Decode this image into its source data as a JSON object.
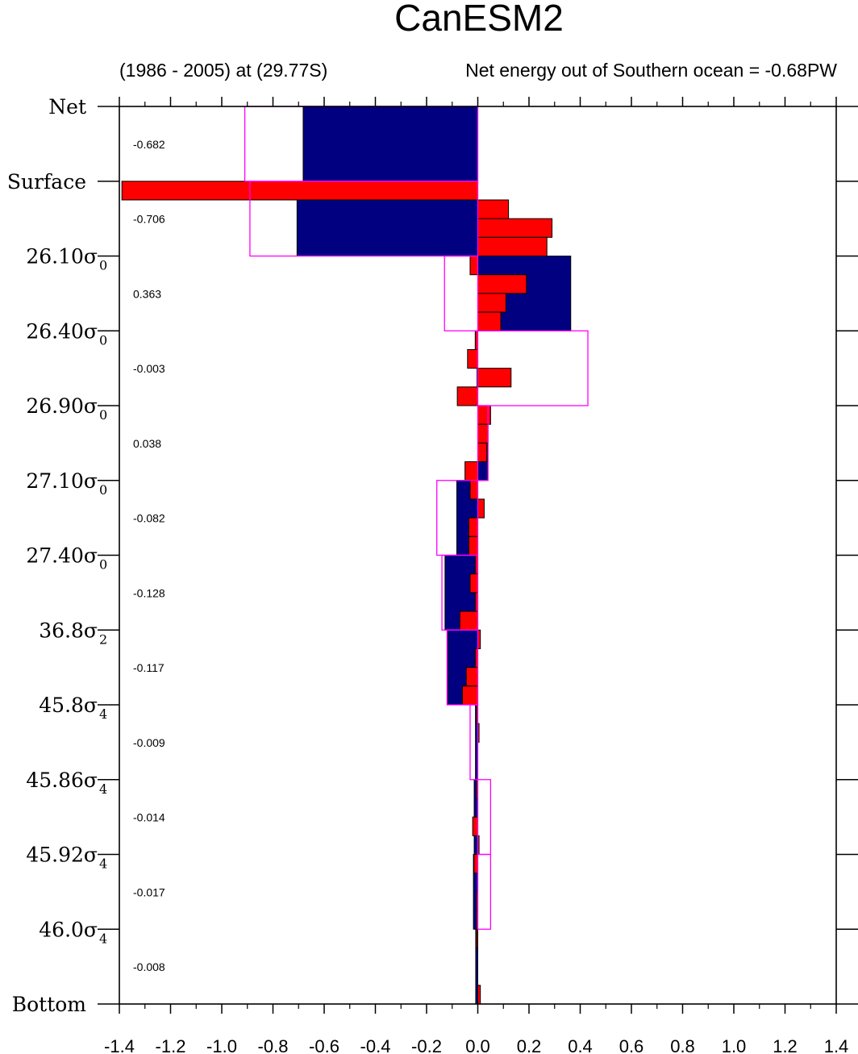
{
  "chart_data": {
    "type": "bar",
    "orientation": "horizontal",
    "title": "CanESM2",
    "subtitle_left": "(1986 - 2005) at (29.77S)",
    "subtitle_right": "Net energy out of Southern ocean = -0.68PW",
    "xlim": [
      -1.4,
      1.4
    ],
    "x_ticks": [
      "-1.4",
      "-1.2",
      "-1.0",
      "-0.8",
      "-0.6",
      "-0.4",
      "-0.2",
      "0.0",
      "0.2",
      "0.4",
      "0.6",
      "0.8",
      "1.0",
      "1.2",
      "1.4"
    ],
    "layer_labels": [
      {
        "main": "Net",
        "sub": ""
      },
      {
        "main": "Surface",
        "sub": ""
      },
      {
        "main": "26.10σ",
        "sub": "0"
      },
      {
        "main": "26.40σ",
        "sub": "0"
      },
      {
        "main": "26.90σ",
        "sub": "0"
      },
      {
        "main": "27.10σ",
        "sub": "0"
      },
      {
        "main": "27.40σ",
        "sub": "0"
      },
      {
        "main": "36.8σ",
        "sub": "2"
      },
      {
        "main": "45.8σ",
        "sub": "4"
      },
      {
        "main": "45.86σ",
        "sub": "4"
      },
      {
        "main": "45.92σ",
        "sub": "4"
      },
      {
        "main": "46.0σ",
        "sub": "4"
      },
      {
        "main": "Bottom",
        "sub": ""
      }
    ],
    "layer_annotations": [
      "-0.682",
      "-0.706",
      "0.363",
      "-0.003",
      "0.038",
      "-0.082",
      "-0.128",
      "-0.117",
      "-0.009",
      "-0.014",
      "-0.017",
      "-0.008"
    ],
    "layer_values": [
      -0.682,
      -0.706,
      0.363,
      -0.003,
      0.038,
      -0.082,
      -0.128,
      -0.117,
      -0.009,
      -0.014,
      -0.017,
      -0.008
    ],
    "outline_values": [
      -0.91,
      -0.89,
      -0.13,
      0.43,
      0.04,
      -0.16,
      -0.14,
      -0.12,
      -0.03,
      0.05,
      0.05,
      0.0
    ],
    "sublayer_values": [
      [],
      [
        -1.39,
        0.12,
        0.29,
        0.27
      ],
      [
        -0.03,
        0.19,
        0.11,
        0.09
      ],
      [
        -0.01,
        -0.04,
        0.13,
        -0.08
      ],
      [
        0.05,
        0.04,
        0.035,
        -0.05
      ],
      [
        -0.03,
        0.025,
        -0.035,
        -0.035
      ],
      [
        -0.01,
        -0.03,
        -0.01,
        -0.07
      ],
      [
        0.01,
        -0.01,
        -0.045,
        -0.06
      ],
      [
        -0.005,
        0.005,
        0.0,
        0.0
      ],
      [
        -0.005,
        0.0,
        -0.02,
        0.005
      ],
      [
        -0.015,
        0.0,
        -0.005,
        -0.005
      ],
      [
        -0.005,
        0.0,
        0.0,
        0.01
      ]
    ],
    "colors": {
      "layer_bar": "#000080",
      "sublayer_bar": "#ff0000",
      "outline": "#ff00ff",
      "frame": "#000000"
    }
  }
}
